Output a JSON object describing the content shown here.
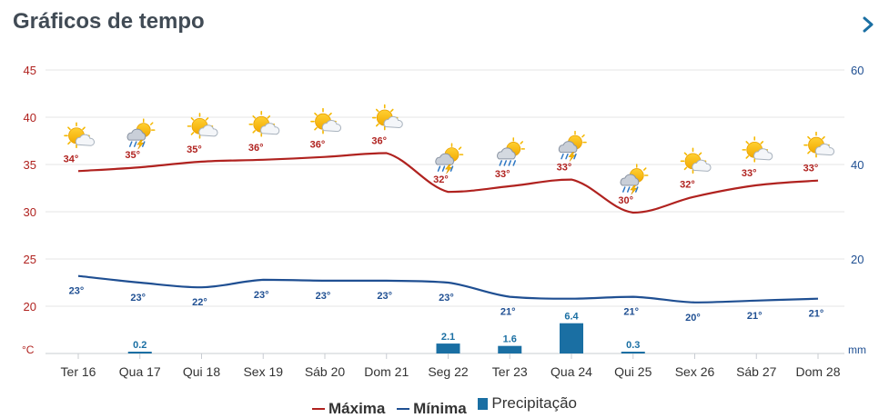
{
  "header": {
    "title": "Gráficos de tempo",
    "next_icon": "chevron-right-icon"
  },
  "colors": {
    "max": "#b0221f",
    "min": "#1f4f92",
    "precip": "#1a6fa3",
    "title": "#414b55",
    "grid": "#e6e6e6"
  },
  "chart_data": {
    "type": "line",
    "title": "Gráficos de tempo",
    "categories": [
      "Ter 16",
      "Qua 17",
      "Qui 18",
      "Sex 19",
      "Sáb 20",
      "Dom 21",
      "Seg 22",
      "Ter 23",
      "Qua 24",
      "Qui 25",
      "Sex 26",
      "Sáb 27",
      "Dom 28"
    ],
    "series": [
      {
        "name": "Máxima",
        "axis": "left",
        "values": [
          34.3,
          34.7,
          35.3,
          35.5,
          35.8,
          36.2,
          32.1,
          32.7,
          33.4,
          29.9,
          31.6,
          32.8,
          33.3
        ],
        "labels": [
          "34°",
          "35°",
          "35°",
          "36°",
          "36°",
          "36°",
          "32°",
          "33°",
          "33°",
          "30°",
          "32°",
          "33°",
          "33°"
        ]
      },
      {
        "name": "Mínima",
        "axis": "left",
        "values": [
          23.2,
          22.5,
          22.0,
          22.8,
          22.7,
          22.7,
          22.5,
          21.0,
          20.8,
          21.0,
          20.4,
          20.6,
          20.8
        ],
        "labels": [
          "23°",
          "23°",
          "22°",
          "23°",
          "23°",
          "23°",
          "23°",
          "21°",
          "",
          "21°",
          "20°",
          "21°",
          "21°"
        ]
      },
      {
        "name": "Precipitação",
        "axis": "right",
        "type": "bar",
        "values": [
          0,
          0.2,
          0,
          0,
          0,
          0,
          2.1,
          1.6,
          6.4,
          0.3,
          0,
          0,
          0
        ],
        "labels": [
          "",
          "0.2",
          "",
          "",
          "",
          "",
          "2.1",
          "1.6",
          "6.4",
          "0.3",
          "",
          "",
          ""
        ]
      }
    ],
    "weather_icons": [
      "sun-cloud-icon",
      "thunderstorm-icon",
      "sun-cloud-icon",
      "sun-cloud-icon",
      "sun-cloud-icon",
      "sun-cloud-icon",
      "thunderstorm-icon",
      "rain-icon",
      "thunderstorm-icon",
      "thunderstorm-icon",
      "sun-cloud-icon",
      "sun-cloud-icon",
      "sun-cloud-icon"
    ],
    "y_left": {
      "unit": "°C",
      "ylim": [
        15,
        45
      ],
      "ticks": [
        45,
        40,
        35,
        30,
        25,
        20
      ]
    },
    "y_right": {
      "unit": "mm",
      "ylim": [
        0,
        60
      ],
      "ticks": [
        60,
        40,
        20
      ]
    },
    "grid": true,
    "legend_position": "bottom-center"
  }
}
